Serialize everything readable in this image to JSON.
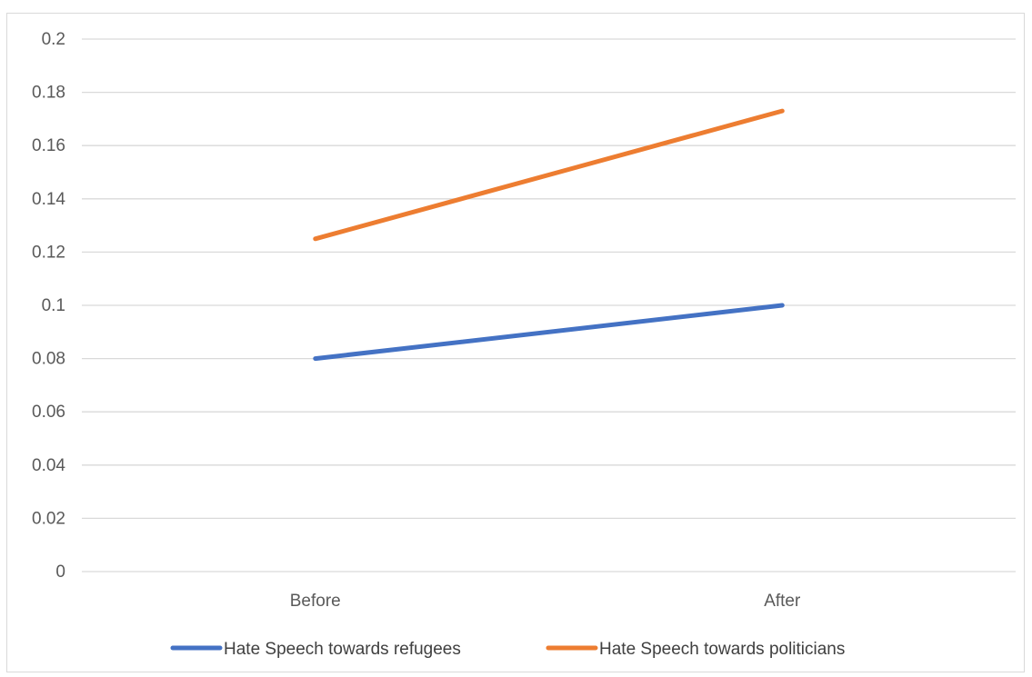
{
  "chart_data": {
    "type": "line",
    "title": "",
    "xlabel": "",
    "ylabel": "",
    "categories": [
      "Before",
      "After"
    ],
    "series": [
      {
        "name": "Hate Speech towards refugees",
        "values": [
          0.08,
          0.1
        ],
        "color": "#4472C4"
      },
      {
        "name": "Hate Speech towards politicians",
        "values": [
          0.125,
          0.173
        ],
        "color": "#ED7D31"
      }
    ],
    "ylim": [
      0,
      0.2
    ],
    "yticks": [
      "0",
      "0.02",
      "0.04",
      "0.06",
      "0.08",
      "0.1",
      "0.12",
      "0.14",
      "0.16",
      "0.18",
      "0.2"
    ],
    "grid": true,
    "gridline_color": "#d9d9d9",
    "legend_position": "bottom"
  }
}
